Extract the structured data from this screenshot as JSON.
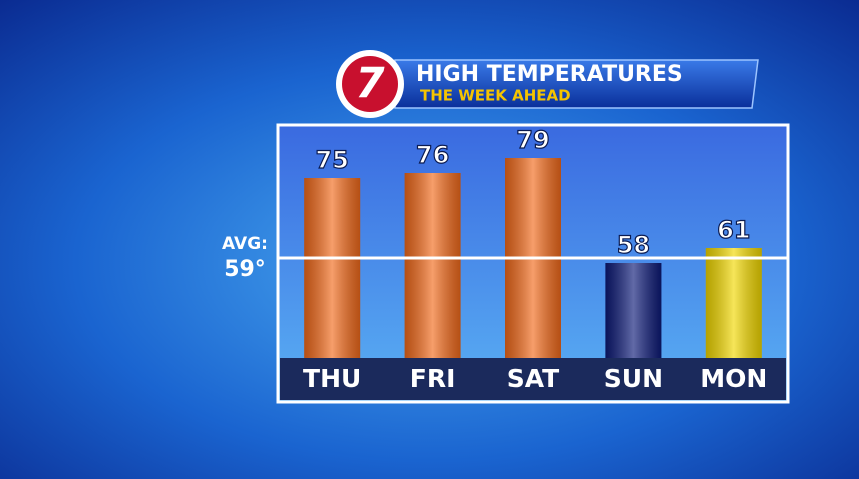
{
  "chart_data": {
    "type": "bar",
    "logo": "7",
    "title": "HIGH TEMPERATURES",
    "subtitle": "THE WEEK AHEAD",
    "categories": [
      "THU",
      "FRI",
      "SAT",
      "SUN",
      "MON"
    ],
    "values": [
      75,
      76,
      79,
      58,
      61
    ],
    "colors": [
      "#f26a1b",
      "#f26a1b",
      "#f26a1b",
      "#0d1a78",
      "#f2d800"
    ],
    "average": {
      "label": "AVG:",
      "value": 59,
      "value_label": "59°"
    },
    "ylim": [
      39,
      85
    ]
  }
}
